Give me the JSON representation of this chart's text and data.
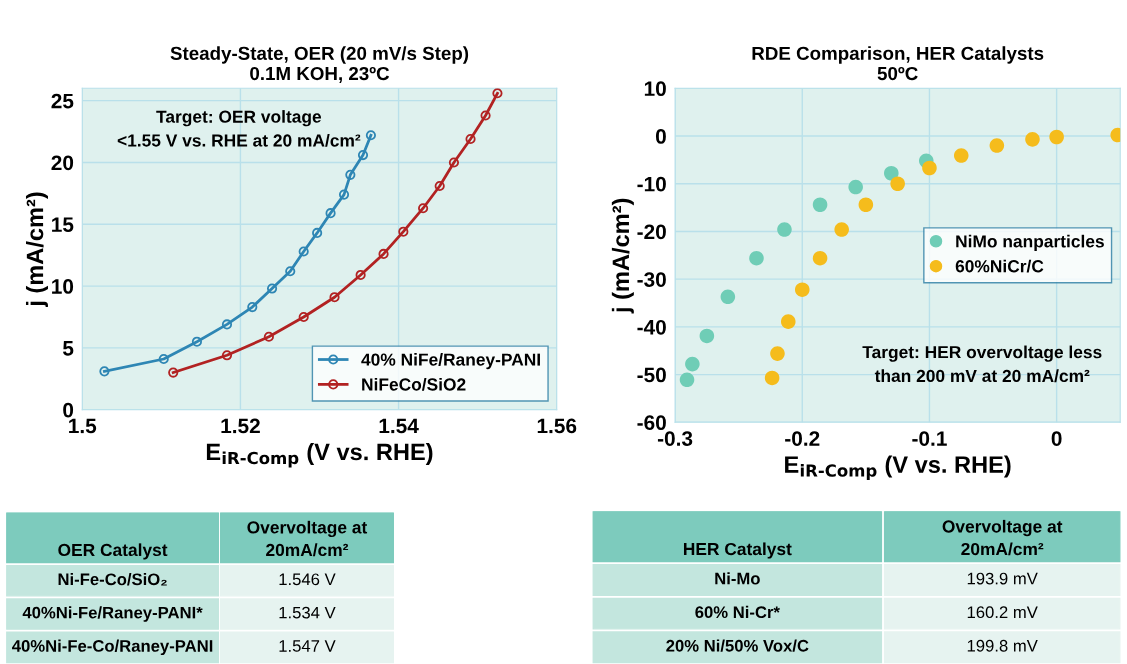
{
  "chart_data": [
    {
      "type": "line",
      "title": "Steady-State, OER (20 mV/s Step)\n0.1M KOH, 23ºC",
      "xlabel": "E$_{iR‐Comp}$ (V vs. RHE)",
      "ylabel": "j (mA/cm²)",
      "xlim": [
        1.5,
        1.56
      ],
      "xticks": [
        1.5,
        1.52,
        1.54,
        1.56
      ],
      "ylim": [
        0,
        26
      ],
      "yticks": [
        0,
        5,
        10,
        15,
        20,
        25
      ],
      "grid": true,
      "legend": "bottom right",
      "marker": "circle",
      "annotations": [
        "Target: OER voltage\n<1.55 V vs. RHE at 20 mA/cm²"
      ],
      "series": [
        {
          "name": "40% NiFe/Raney-PANI",
          "color": "#2e86b4",
          "x": [
            1.5028,
            1.5103,
            1.5145,
            1.5183,
            1.5215,
            1.524,
            1.5263,
            1.528,
            1.5297,
            1.5314,
            1.5331,
            1.5339,
            1.5355,
            1.5365
          ],
          "values": [
            3.1,
            4.1,
            5.5,
            6.9,
            8.3,
            9.8,
            11.2,
            12.8,
            14.3,
            15.9,
            17.4,
            19.0,
            20.6,
            22.2
          ]
        },
        {
          "name": "NiFeCo/SiO2",
          "color": "#b22222",
          "x": [
            1.5115,
            1.5183,
            1.5236,
            1.528,
            1.5319,
            1.5352,
            1.5381,
            1.5406,
            1.5431,
            1.5452,
            1.547,
            1.5491,
            1.551,
            1.5525
          ],
          "values": [
            3.0,
            4.4,
            5.9,
            7.5,
            9.1,
            10.9,
            12.6,
            14.4,
            16.3,
            18.1,
            20.0,
            21.9,
            23.8,
            25.6
          ]
        }
      ]
    },
    {
      "type": "scatter",
      "title": "RDE Comparison, HER Catalysts\n50ºC",
      "xlabel": "E$_{iR‐Comp}$ (V vs. RHE)",
      "ylabel": "j (mA/cm²)",
      "xlim": [
        -0.3,
        0.05
      ],
      "xticks": [
        -0.3,
        -0.2,
        -0.1,
        0
      ],
      "ylim": [
        -60,
        10
      ],
      "yticks": [
        -60,
        -50,
        -40,
        -30,
        -20,
        -10,
        0,
        10
      ],
      "grid": true,
      "legend": "right",
      "marker": "circle",
      "annotations": [
        "Target: HER overvoltage less\nthan 200 mV at 20 mA/cm²"
      ],
      "series": [
        {
          "name": "NiMo nanparticles",
          "color": "#6fcdb6",
          "x": [
            -0.2906,
            -0.2864,
            -0.275,
            -0.2585,
            -0.236,
            -0.214,
            -0.186,
            -0.158,
            -0.13,
            -0.1025
          ],
          "values": [
            -51.1,
            -47.8,
            -41.9,
            -33.7,
            -25.6,
            -19.6,
            -14.4,
            -10.7,
            -7.8,
            -5.2
          ]
        },
        {
          "name": "60%NiCr/C",
          "color": "#f5bc1c",
          "x": [
            -0.2237,
            -0.2195,
            -0.211,
            -0.2,
            -0.186,
            -0.169,
            -0.15,
            -0.125,
            -0.1,
            -0.075,
            -0.047,
            -0.019,
            0,
            0.048
          ],
          "values": [
            -50.7,
            -45.6,
            -38.9,
            -32.2,
            -25.6,
            -19.6,
            -14.4,
            -10,
            -6.7,
            -4.1,
            -2,
            -0.7,
            -0.2,
            0.2
          ]
        }
      ]
    },
    {
      "type": "other",
      "categories": [
        "OER Catalyst",
        "Overvoltage at\n20mA/cm²"
      ],
      "annotations": [
        "Ni-Fe-Co/SiO₂",
        "1.546 V",
        "40%Ni-Fe/Raney-PANI*",
        "1.534 V",
        "40%Ni-Fe-Co/Raney-PANI",
        "1.547 V"
      ]
    },
    {
      "type": "other",
      "categories": [
        "HER Catalyst",
        "Overvoltage at\n20mA/cm²"
      ],
      "annotations": [
        "Ni-Mo",
        "193.9 mV",
        "60% Ni-Cr*",
        "160.2 mV",
        "20% Ni/50% Vox/C",
        "199.8 mV"
      ]
    }
  ]
}
